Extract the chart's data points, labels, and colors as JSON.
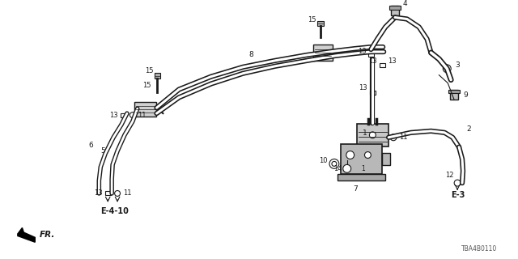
{
  "diagram_code": "TBA4B0110",
  "background_color": "#ffffff",
  "line_color": "#1a1a1a",
  "figsize": [
    6.4,
    3.2
  ],
  "dpi": 100
}
